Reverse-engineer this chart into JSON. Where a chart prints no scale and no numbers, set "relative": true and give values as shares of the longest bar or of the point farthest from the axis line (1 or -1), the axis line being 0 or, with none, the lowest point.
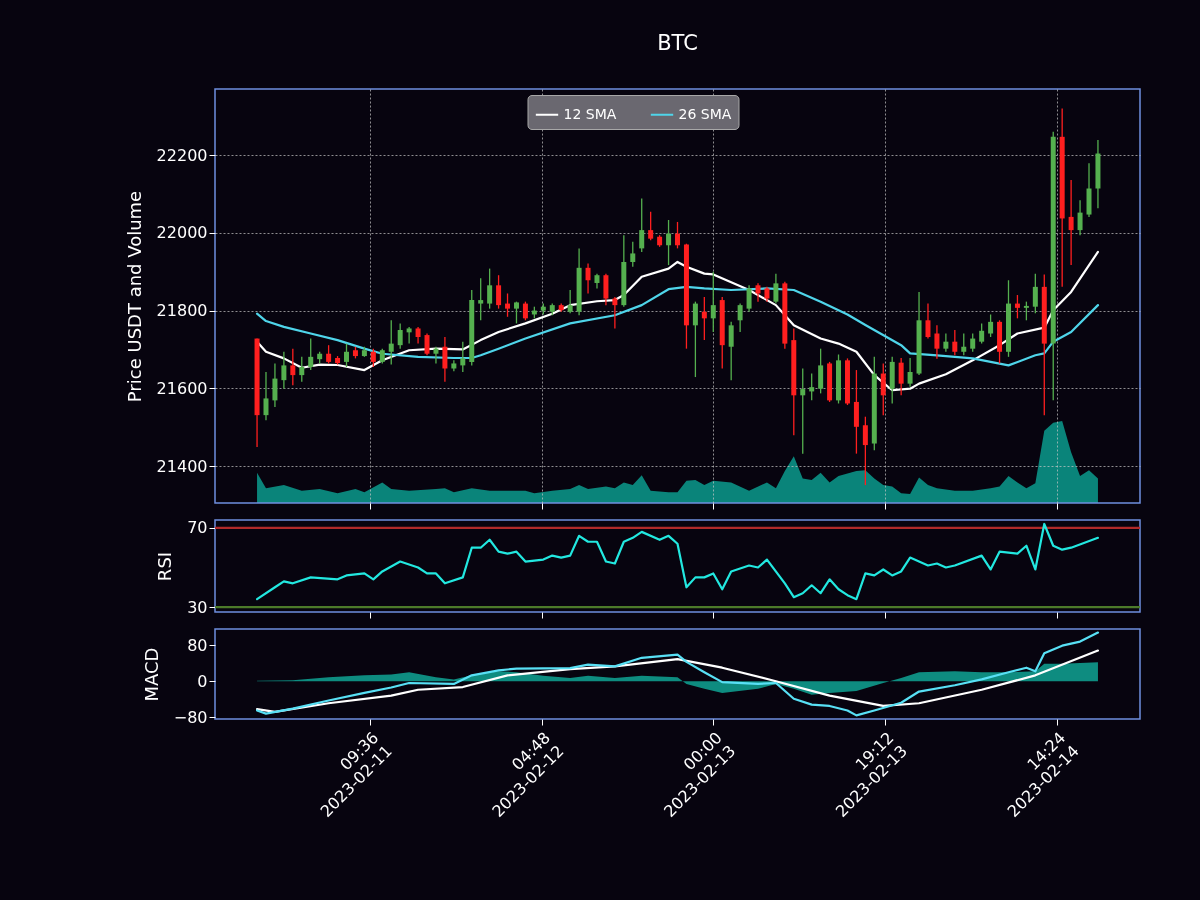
{
  "chart_data": [
    {
      "type": "candlestick",
      "title": "BTC",
      "ylabel": "Price USDT and Volume",
      "grid": true,
      "legend": "top",
      "tick_labels": "y",
      "xlim": [
        "2023-02-10T16:18",
        "2023-02-14T23:42"
      ],
      "xticks": [
        "2023-02-11T09:36",
        "2023-02-12T04:48",
        "2023-02-13T00:00",
        "2023-02-13T19:12",
        "2023-02-14T14:24"
      ],
      "ylim": [
        21305,
        22370
      ],
      "yticks": [
        21400,
        21600,
        21800,
        22000,
        22200
      ],
      "x": [
        "2023-02-10T21:00",
        "2023-02-10T22:00",
        "2023-02-10T23:00",
        "2023-02-11T00:00",
        "2023-02-11T01:00",
        "2023-02-11T02:00",
        "2023-02-11T03:00",
        "2023-02-11T04:00",
        "2023-02-11T05:00",
        "2023-02-11T06:00",
        "2023-02-11T07:00",
        "2023-02-11T08:00",
        "2023-02-11T09:00",
        "2023-02-11T10:00",
        "2023-02-11T11:00",
        "2023-02-11T12:00",
        "2023-02-11T13:00",
        "2023-02-11T14:00",
        "2023-02-11T15:00",
        "2023-02-11T16:00",
        "2023-02-11T17:00",
        "2023-02-11T18:00",
        "2023-02-11T19:00",
        "2023-02-11T20:00",
        "2023-02-11T21:00",
        "2023-02-11T22:00",
        "2023-02-11T23:00",
        "2023-02-12T00:00",
        "2023-02-12T01:00",
        "2023-02-12T02:00",
        "2023-02-12T03:00",
        "2023-02-12T04:00",
        "2023-02-12T05:00",
        "2023-02-12T06:00",
        "2023-02-12T07:00",
        "2023-02-12T08:00",
        "2023-02-12T09:00",
        "2023-02-12T10:00",
        "2023-02-12T11:00",
        "2023-02-12T12:00",
        "2023-02-12T13:00",
        "2023-02-12T14:00",
        "2023-02-12T15:00",
        "2023-02-12T16:00",
        "2023-02-12T17:00",
        "2023-02-12T18:00",
        "2023-02-12T19:00",
        "2023-02-12T20:00",
        "2023-02-12T21:00",
        "2023-02-12T22:00",
        "2023-02-12T23:00",
        "2023-02-13T00:00",
        "2023-02-13T01:00",
        "2023-02-13T02:00",
        "2023-02-13T03:00",
        "2023-02-13T04:00",
        "2023-02-13T05:00",
        "2023-02-13T06:00",
        "2023-02-13T07:00",
        "2023-02-13T08:00",
        "2023-02-13T09:00",
        "2023-02-13T10:00",
        "2023-02-13T11:00",
        "2023-02-13T12:00",
        "2023-02-13T13:00",
        "2023-02-13T14:00",
        "2023-02-13T15:00",
        "2023-02-13T16:00",
        "2023-02-13T17:00",
        "2023-02-13T18:00",
        "2023-02-13T19:00",
        "2023-02-13T20:00",
        "2023-02-13T21:00",
        "2023-02-13T22:00",
        "2023-02-13T23:00",
        "2023-02-14T00:00",
        "2023-02-14T01:00",
        "2023-02-14T02:00",
        "2023-02-14T03:00",
        "2023-02-14T04:00",
        "2023-02-14T05:00",
        "2023-02-14T06:00",
        "2023-02-14T07:00",
        "2023-02-14T08:00",
        "2023-02-14T09:00",
        "2023-02-14T10:00",
        "2023-02-14T11:00",
        "2023-02-14T12:00",
        "2023-02-14T13:00",
        "2023-02-14T14:00",
        "2023-02-14T15:00",
        "2023-02-14T16:00",
        "2023-02-14T17:00",
        "2023-02-14T18:00",
        "2023-02-14T19:00"
      ],
      "ohlc": [
        [
          21728,
          21728,
          21449,
          21531
        ],
        [
          21531,
          21642,
          21518,
          21574
        ],
        [
          21569,
          21664,
          21552,
          21625
        ],
        [
          21621,
          21694,
          21599,
          21659
        ],
        [
          21659,
          21702,
          21608,
          21634
        ],
        [
          21634,
          21681,
          21617,
          21655
        ],
        [
          21655,
          21728,
          21647,
          21681
        ],
        [
          21675,
          21694,
          21664,
          21689
        ],
        [
          21689,
          21711,
          21664,
          21668
        ],
        [
          21678,
          21683,
          21661,
          21665
        ],
        [
          21668,
          21715,
          21655,
          21694
        ],
        [
          21698,
          21707,
          21677,
          21683
        ],
        [
          21683,
          21707,
          21681,
          21698
        ],
        [
          21694,
          21702,
          21655,
          21668
        ],
        [
          21668,
          21702,
          21664,
          21698
        ],
        [
          21694,
          21775,
          21661,
          21715
        ],
        [
          21711,
          21767,
          21702,
          21750
        ],
        [
          21744,
          21758,
          21715,
          21754
        ],
        [
          21754,
          21758,
          21715,
          21732
        ],
        [
          21737,
          21741,
          21685,
          21689
        ],
        [
          21689,
          21707,
          21664,
          21702
        ],
        [
          21707,
          21732,
          21617,
          21651
        ],
        [
          21651,
          21672,
          21644,
          21664
        ],
        [
          21659,
          21720,
          21642,
          21677
        ],
        [
          21668,
          21853,
          21659,
          21827
        ],
        [
          21818,
          21883,
          21775,
          21827
        ],
        [
          21818,
          21908,
          21805,
          21865
        ],
        [
          21865,
          21891,
          21805,
          21814
        ],
        [
          21818,
          21844,
          21784,
          21805
        ],
        [
          21805,
          21823,
          21767,
          21821
        ],
        [
          21818,
          21823,
          21775,
          21780
        ],
        [
          21790,
          21810,
          21780,
          21800
        ],
        [
          21800,
          21818,
          21790,
          21810
        ],
        [
          21797,
          21818,
          21788,
          21814
        ],
        [
          21814,
          21818,
          21797,
          21801
        ],
        [
          21797,
          21853,
          21793,
          21814
        ],
        [
          21797,
          21960,
          21788,
          21910
        ],
        [
          21910,
          21921,
          21844,
          21878
        ],
        [
          21871,
          21895,
          21857,
          21891
        ],
        [
          21891,
          21895,
          21814,
          21831
        ],
        [
          21831,
          21835,
          21754,
          21814
        ],
        [
          21814,
          21994,
          21810,
          21925
        ],
        [
          21925,
          21977,
          21913,
          21947
        ],
        [
          21960,
          22088,
          21951,
          22007
        ],
        [
          22007,
          22054,
          21981,
          21985
        ],
        [
          21990,
          21994,
          21964,
          21968
        ],
        [
          21968,
          22033,
          21917,
          21998
        ],
        [
          21998,
          22028,
          21960,
          21968
        ],
        [
          21970,
          21972,
          21702,
          21762
        ],
        [
          21762,
          21823,
          21629,
          21818
        ],
        [
          21797,
          21835,
          21724,
          21780
        ],
        [
          21780,
          21900,
          21745,
          21814
        ],
        [
          21827,
          21835,
          21651,
          21711
        ],
        [
          21707,
          21771,
          21621,
          21762
        ],
        [
          21775,
          21818,
          21745,
          21814
        ],
        [
          21805,
          21865,
          21797,
          21857
        ],
        [
          21865,
          21870,
          21823,
          21844
        ],
        [
          21857,
          21861,
          21823,
          21831
        ],
        [
          21823,
          21895,
          21818,
          21870
        ],
        [
          21870,
          21874,
          21702,
          21715
        ],
        [
          21724,
          21754,
          21479,
          21582
        ],
        [
          21582,
          21651,
          21432,
          21598
        ],
        [
          21592,
          21638,
          21569,
          21603
        ],
        [
          21599,
          21702,
          21587,
          21659
        ],
        [
          21664,
          21668,
          21565,
          21569
        ],
        [
          21569,
          21687,
          21561,
          21672
        ],
        [
          21672,
          21677,
          21557,
          21561
        ],
        [
          21565,
          21647,
          21432,
          21501
        ],
        [
          21505,
          21527,
          21351,
          21454
        ],
        [
          21458,
          21681,
          21441,
          21638
        ],
        [
          21638,
          21664,
          21531,
          21582
        ],
        [
          21599,
          21681,
          21561,
          21668
        ],
        [
          21666,
          21678,
          21582,
          21612
        ],
        [
          21612,
          21678,
          21604,
          21642
        ],
        [
          21638,
          21848,
          21634,
          21775
        ],
        [
          21775,
          21818,
          21728,
          21732
        ],
        [
          21741,
          21762,
          21676,
          21702
        ],
        [
          21702,
          21741,
          21694,
          21720
        ],
        [
          21720,
          21750,
          21685,
          21694
        ],
        [
          21694,
          21741,
          21685,
          21707
        ],
        [
          21702,
          21741,
          21694,
          21728
        ],
        [
          21720,
          21767,
          21715,
          21748
        ],
        [
          21741,
          21790,
          21732,
          21771
        ],
        [
          21771,
          21775,
          21664,
          21694
        ],
        [
          21694,
          21878,
          21681,
          21818
        ],
        [
          21818,
          21840,
          21780,
          21807
        ],
        [
          21807,
          21823,
          21775,
          21812
        ],
        [
          21810,
          21895,
          21793,
          21861
        ],
        [
          21861,
          21893,
          21531,
          21715
        ],
        [
          21715,
          22260,
          21569,
          22247
        ],
        [
          22247,
          22320,
          21861,
          22037
        ],
        [
          22041,
          22136,
          21917,
          22007
        ],
        [
          22007,
          22084,
          21994,
          22052
        ],
        [
          22047,
          22179,
          22041,
          22114
        ],
        [
          22114,
          22239,
          22063,
          22204
        ]
      ],
      "series": [
        {
          "name": "12 SMA",
          "type": "line",
          "color": "#ffffff",
          "x": [
            "2023-02-10T21:00",
            "2023-02-10T22:00",
            "2023-02-11T00:00",
            "2023-02-11T02:00",
            "2023-02-11T04:00",
            "2023-02-11T06:00",
            "2023-02-11T09:00",
            "2023-02-11T11:00",
            "2023-02-11T14:00",
            "2023-02-11T17:00",
            "2023-02-11T20:00",
            "2023-02-11T22:00",
            "2023-02-12T00:00",
            "2023-02-12T03:00",
            "2023-02-12T06:00",
            "2023-02-12T08:00",
            "2023-02-12T11:00",
            "2023-02-12T13:00",
            "2023-02-12T14:00",
            "2023-02-12T16:00",
            "2023-02-12T19:00",
            "2023-02-12T20:00",
            "2023-02-12T21:00",
            "2023-02-12T23:00",
            "2023-02-13T00:00",
            "2023-02-13T04:00",
            "2023-02-13T07:00",
            "2023-02-13T09:00",
            "2023-02-13T12:00",
            "2023-02-13T14:00",
            "2023-02-13T16:00",
            "2023-02-13T18:00",
            "2023-02-13T20:00",
            "2023-02-13T22:00",
            "2023-02-13T23:00",
            "2023-02-14T02:00",
            "2023-02-14T05:00",
            "2023-02-14T08:00",
            "2023-02-14T10:00",
            "2023-02-14T13:00",
            "2023-02-14T14:00",
            "2023-02-14T16:00",
            "2023-02-14T19:00"
          ],
          "values": [
            21720,
            21694,
            21677,
            21653,
            21661,
            21660,
            21647,
            21672,
            21698,
            21702,
            21700,
            21724,
            21745,
            21767,
            21792,
            21814,
            21824,
            21827,
            21840,
            21887,
            21908,
            21925,
            21913,
            21895,
            21893,
            21853,
            21814,
            21762,
            21728,
            21715,
            21694,
            21634,
            21595,
            21599,
            21612,
            21636,
            21672,
            21711,
            21741,
            21756,
            21801,
            21848,
            21951
          ]
        },
        {
          "name": "26 SMA",
          "type": "line",
          "color": "#4fd5ea",
          "x": [
            "2023-02-10T21:00",
            "2023-02-10T22:00",
            "2023-02-11T00:00",
            "2023-02-11T03:00",
            "2023-02-11T06:00",
            "2023-02-11T09:00",
            "2023-02-11T11:00",
            "2023-02-11T15:00",
            "2023-02-11T19:00",
            "2023-02-11T21:00",
            "2023-02-11T22:00",
            "2023-02-12T00:00",
            "2023-02-12T03:00",
            "2023-02-12T08:00",
            "2023-02-12T13:00",
            "2023-02-12T16:00",
            "2023-02-12T19:00",
            "2023-02-12T21:00",
            "2023-02-12T23:00",
            "2023-02-13T02:00",
            "2023-02-13T06:00",
            "2023-02-13T09:00",
            "2023-02-13T12:00",
            "2023-02-13T15:00",
            "2023-02-13T17:00",
            "2023-02-13T21:00",
            "2023-02-13T22:00",
            "2023-02-14T01:00",
            "2023-02-14T05:00",
            "2023-02-14T09:00",
            "2023-02-14T12:00",
            "2023-02-14T13:00",
            "2023-02-14T14:00",
            "2023-02-14T16:00",
            "2023-02-14T19:00"
          ],
          "values": [
            21792,
            21773,
            21758,
            21741,
            21724,
            21702,
            21689,
            21681,
            21678,
            21678,
            21685,
            21702,
            21728,
            21767,
            21788,
            21814,
            21855,
            21861,
            21857,
            21853,
            21857,
            21853,
            21823,
            21790,
            21763,
            21711,
            21690,
            21685,
            21677,
            21659,
            21685,
            21690,
            21720,
            21745,
            21814
          ]
        }
      ]
    },
    {
      "type": "area",
      "relative": true,
      "xlim": [
        "2023-02-10T16:18",
        "2023-02-14T23:42"
      ],
      "series": [
        {
          "color": "#0a847a",
          "x": [
            "2023-02-10T21:00",
            "2023-02-10T22:00",
            "2023-02-11T00:00",
            "2023-02-11T02:00",
            "2023-02-11T04:00",
            "2023-02-11T06:00",
            "2023-02-11T08:00",
            "2023-02-11T09:00",
            "2023-02-11T11:00",
            "2023-02-11T12:00",
            "2023-02-11T14:00",
            "2023-02-11T17:00",
            "2023-02-11T18:00",
            "2023-02-11T19:00",
            "2023-02-11T21:00",
            "2023-02-11T23:00",
            "2023-02-12T03:00",
            "2023-02-12T04:00",
            "2023-02-12T06:00",
            "2023-02-12T08:00",
            "2023-02-12T09:00",
            "2023-02-12T10:00",
            "2023-02-12T12:00",
            "2023-02-12T13:00",
            "2023-02-12T14:00",
            "2023-02-12T15:00",
            "2023-02-12T16:00",
            "2023-02-12T17:00",
            "2023-02-12T19:00",
            "2023-02-12T20:00",
            "2023-02-12T21:00",
            "2023-02-12T22:00",
            "2023-02-12T23:00",
            "2023-02-13T00:00",
            "2023-02-13T02:00",
            "2023-02-13T04:00",
            "2023-02-13T06:00",
            "2023-02-13T07:00",
            "2023-02-13T08:00",
            "2023-02-13T09:00",
            "2023-02-13T10:00",
            "2023-02-13T11:00",
            "2023-02-13T12:00",
            "2023-02-13T13:00",
            "2023-02-13T14:00",
            "2023-02-13T16:00",
            "2023-02-13T17:00",
            "2023-02-13T18:00",
            "2023-02-13T19:00",
            "2023-02-13T20:00",
            "2023-02-13T21:00",
            "2023-02-13T22:00",
            "2023-02-13T23:00",
            "2023-02-14T00:00",
            "2023-02-14T01:00",
            "2023-02-14T03:00",
            "2023-02-14T05:00",
            "2023-02-14T07:00",
            "2023-02-14T08:00",
            "2023-02-14T09:00",
            "2023-02-14T10:00",
            "2023-02-14T11:00",
            "2023-02-14T12:00",
            "2023-02-14T13:00",
            "2023-02-14T14:00",
            "2023-02-14T15:00",
            "2023-02-14T16:00",
            "2023-02-14T17:00",
            "2023-02-14T18:00",
            "2023-02-14T19:00"
          ],
          "values": [
            0.37,
            0.18,
            0.22,
            0.15,
            0.17,
            0.12,
            0.17,
            0.13,
            0.25,
            0.17,
            0.15,
            0.17,
            0.18,
            0.13,
            0.18,
            0.15,
            0.15,
            0.12,
            0.15,
            0.17,
            0.22,
            0.17,
            0.2,
            0.18,
            0.25,
            0.22,
            0.34,
            0.15,
            0.13,
            0.13,
            0.27,
            0.28,
            0.22,
            0.27,
            0.25,
            0.15,
            0.25,
            0.18,
            0.39,
            0.57,
            0.3,
            0.28,
            0.37,
            0.25,
            0.33,
            0.39,
            0.4,
            0.3,
            0.22,
            0.2,
            0.12,
            0.11,
            0.31,
            0.22,
            0.18,
            0.15,
            0.15,
            0.18,
            0.2,
            0.33,
            0.25,
            0.18,
            0.24,
            0.88,
            0.98,
            1,
            0.62,
            0.33,
            0.4,
            0.3
          ]
        }
      ]
    },
    {
      "type": "line",
      "ylabel": "RSI",
      "tick_labels": "y",
      "xlim": [
        "2023-02-10T16:18",
        "2023-02-14T23:42"
      ],
      "xticks": [
        "2023-02-11T09:36",
        "2023-02-12T04:48",
        "2023-02-13T00:00",
        "2023-02-13T19:12",
        "2023-02-14T14:24"
      ],
      "ylim": [
        27.5,
        74
      ],
      "yticks": [
        30,
        70
      ],
      "ref_lines": [
        {
          "axis": "y",
          "value": 70,
          "color": "#b02a2a"
        },
        {
          "axis": "y",
          "value": 30,
          "color": "#4c7a2a"
        }
      ],
      "series": [
        {
          "color": "#22e8e0",
          "x": [
            "2023-02-10T21:00",
            "2023-02-10T23:00",
            "2023-02-11T00:00",
            "2023-02-11T01:00",
            "2023-02-11T03:00",
            "2023-02-11T06:00",
            "2023-02-11T07:00",
            "2023-02-11T09:00",
            "2023-02-11T10:00",
            "2023-02-11T11:00",
            "2023-02-11T13:00",
            "2023-02-11T15:00",
            "2023-02-11T16:00",
            "2023-02-11T17:00",
            "2023-02-11T18:00",
            "2023-02-11T20:00",
            "2023-02-11T21:00",
            "2023-02-11T22:00",
            "2023-02-11T23:00",
            "2023-02-12T00:00",
            "2023-02-12T01:00",
            "2023-02-12T02:00",
            "2023-02-12T03:00",
            "2023-02-12T05:00",
            "2023-02-12T06:00",
            "2023-02-12T07:00",
            "2023-02-12T08:00",
            "2023-02-12T09:00",
            "2023-02-12T10:00",
            "2023-02-12T11:00",
            "2023-02-12T12:00",
            "2023-02-12T13:00",
            "2023-02-12T14:00",
            "2023-02-12T15:00",
            "2023-02-12T16:00",
            "2023-02-12T18:00",
            "2023-02-12T19:00",
            "2023-02-12T20:00",
            "2023-02-12T21:00",
            "2023-02-12T22:00",
            "2023-02-12T23:00",
            "2023-02-13T00:00",
            "2023-02-13T01:00",
            "2023-02-13T02:00",
            "2023-02-13T04:00",
            "2023-02-13T05:00",
            "2023-02-13T06:00",
            "2023-02-13T08:00",
            "2023-02-13T09:00",
            "2023-02-13T10:00",
            "2023-02-13T11:00",
            "2023-02-13T12:00",
            "2023-02-13T13:00",
            "2023-02-13T14:00",
            "2023-02-13T15:00",
            "2023-02-13T16:00",
            "2023-02-13T17:00",
            "2023-02-13T18:00",
            "2023-02-13T19:00",
            "2023-02-13T20:00",
            "2023-02-13T21:00",
            "2023-02-13T22:00",
            "2023-02-14T00:00",
            "2023-02-14T01:00",
            "2023-02-14T02:00",
            "2023-02-14T03:00",
            "2023-02-14T06:00",
            "2023-02-14T07:00",
            "2023-02-14T08:00",
            "2023-02-14T10:00",
            "2023-02-14T11:00",
            "2023-02-14T12:00",
            "2023-02-14T13:00",
            "2023-02-14T14:00",
            "2023-02-14T15:00",
            "2023-02-14T16:00",
            "2023-02-14T19:00"
          ],
          "values": [
            34,
            40,
            43,
            42,
            45,
            44,
            46,
            47,
            44,
            48,
            53,
            50,
            47,
            47,
            42,
            45,
            60,
            60,
            64,
            58,
            57,
            58,
            53,
            54,
            56,
            55,
            56,
            66,
            63,
            63,
            53,
            52,
            63,
            65,
            68,
            64,
            66,
            62,
            40,
            45,
            45,
            47,
            39,
            48,
            51,
            50,
            54,
            42,
            35,
            37,
            41,
            37,
            44,
            39,
            36,
            34,
            47,
            46,
            49,
            46,
            48,
            55,
            51,
            52,
            50,
            51,
            56,
            49,
            58,
            57,
            61,
            49,
            72,
            61,
            59,
            60,
            65
          ]
        }
      ]
    },
    {
      "type": "line",
      "ylabel": "MACD",
      "xlim": [
        "2023-02-10T16:18",
        "2023-02-14T23:42"
      ],
      "xticks": [
        {
          "value": "2023-02-11T09:36",
          "label": "09:36\n2023-02-11"
        },
        {
          "value": "2023-02-12T04:48",
          "label": "04:48\n2023-02-12"
        },
        {
          "value": "2023-02-13T00:00",
          "label": "00:00\n2023-02-13"
        },
        {
          "value": "2023-02-13T19:12",
          "label": "19:12\n2023-02-13"
        },
        {
          "value": "2023-02-14T14:24",
          "label": "14:24\n2023-02-14"
        }
      ],
      "ylim": [
        -84,
        116
      ],
      "yticks": [
        {
          "value": -80,
          "label": "−80"
        },
        0,
        80
      ],
      "series": [
        {
          "type": "area",
          "color": "#0e8c80",
          "x": [
            "2023-02-10T21:00",
            "2023-02-11T01:00",
            "2023-02-11T05:00",
            "2023-02-11T09:00",
            "2023-02-11T12:00",
            "2023-02-11T14:00",
            "2023-02-11T17:00",
            "2023-02-11T19:00",
            "2023-02-11T21:00",
            "2023-02-12T00:00",
            "2023-02-12T02:00",
            "2023-02-12T05:00",
            "2023-02-12T08:00",
            "2023-02-12T10:00",
            "2023-02-12T13:00",
            "2023-02-12T16:00",
            "2023-02-12T20:00",
            "2023-02-12T21:00",
            "2023-02-12T23:00",
            "2023-02-13T01:00",
            "2023-02-13T05:00",
            "2023-02-13T07:00",
            "2023-02-13T09:00",
            "2023-02-13T11:00",
            "2023-02-13T13:00",
            "2023-02-13T16:00",
            "2023-02-13T19:00",
            "2023-02-13T21:00",
            "2023-02-13T23:00",
            "2023-02-14T03:00",
            "2023-02-14T06:00",
            "2023-02-14T09:00",
            "2023-02-14T12:00",
            "2023-02-14T13:00",
            "2023-02-14T15:00",
            "2023-02-14T19:00"
          ],
          "values": [
            1,
            2,
            9,
            13,
            15,
            20,
            9,
            4,
            13,
            22,
            20,
            12,
            7,
            12,
            7,
            12,
            9,
            -6,
            -17,
            -26,
            -17,
            -6,
            -17,
            -30,
            -26,
            -22,
            -4,
            7,
            20,
            22,
            20,
            20,
            22,
            39,
            39,
            42
          ]
        },
        {
          "type": "line",
          "color": "#ffffff",
          "x": [
            "2023-02-10T21:00",
            "2023-02-10T23:00",
            "2023-02-11T05:00",
            "2023-02-11T12:00",
            "2023-02-11T15:00",
            "2023-02-11T20:00",
            "2023-02-12T01:00",
            "2023-02-12T08:00",
            "2023-02-12T13:00",
            "2023-02-12T20:00",
            "2023-02-13T01:00",
            "2023-02-13T07:00",
            "2023-02-13T13:00",
            "2023-02-13T19:00",
            "2023-02-13T23:00",
            "2023-02-14T06:00",
            "2023-02-14T12:00",
            "2023-02-14T19:00"
          ],
          "values": [
            -62,
            -68,
            -49,
            -32,
            -19,
            -13,
            13,
            27,
            33,
            49,
            30,
            0,
            -32,
            -55,
            -49,
            -19,
            13,
            68
          ]
        },
        {
          "type": "line",
          "color": "#58e0f5",
          "x": [
            "2023-02-10T21:00",
            "2023-02-10T22:00",
            "2023-02-11T01:00",
            "2023-02-11T05:00",
            "2023-02-11T09:00",
            "2023-02-11T12:00",
            "2023-02-11T14:00",
            "2023-02-11T19:00",
            "2023-02-11T21:00",
            "2023-02-12T00:00",
            "2023-02-12T02:00",
            "2023-02-12T08:00",
            "2023-02-12T10:00",
            "2023-02-12T13:00",
            "2023-02-12T16:00",
            "2023-02-12T20:00",
            "2023-02-12T21:00",
            "2023-02-12T23:00",
            "2023-02-13T01:00",
            "2023-02-13T05:00",
            "2023-02-13T07:00",
            "2023-02-13T09:00",
            "2023-02-13T11:00",
            "2023-02-13T13:00",
            "2023-02-13T15:00",
            "2023-02-13T16:00",
            "2023-02-13T18:00",
            "2023-02-13T21:00",
            "2023-02-13T23:00",
            "2023-02-14T03:00",
            "2023-02-14T06:00",
            "2023-02-14T09:00",
            "2023-02-14T11:00",
            "2023-02-14T12:00",
            "2023-02-14T13:00",
            "2023-02-14T15:00",
            "2023-02-14T17:00",
            "2023-02-14T19:00"
          ],
          "values": [
            -65,
            -72,
            -61,
            -43,
            -26,
            -14,
            -4,
            -6,
            13,
            24,
            28,
            29,
            37,
            33,
            52,
            59,
            43,
            20,
            -2,
            -6,
            -4,
            -39,
            -52,
            -55,
            -65,
            -76,
            -65,
            -48,
            -23,
            -9,
            4,
            20,
            30,
            22,
            62,
            79,
            88,
            108
          ]
        }
      ]
    }
  ]
}
